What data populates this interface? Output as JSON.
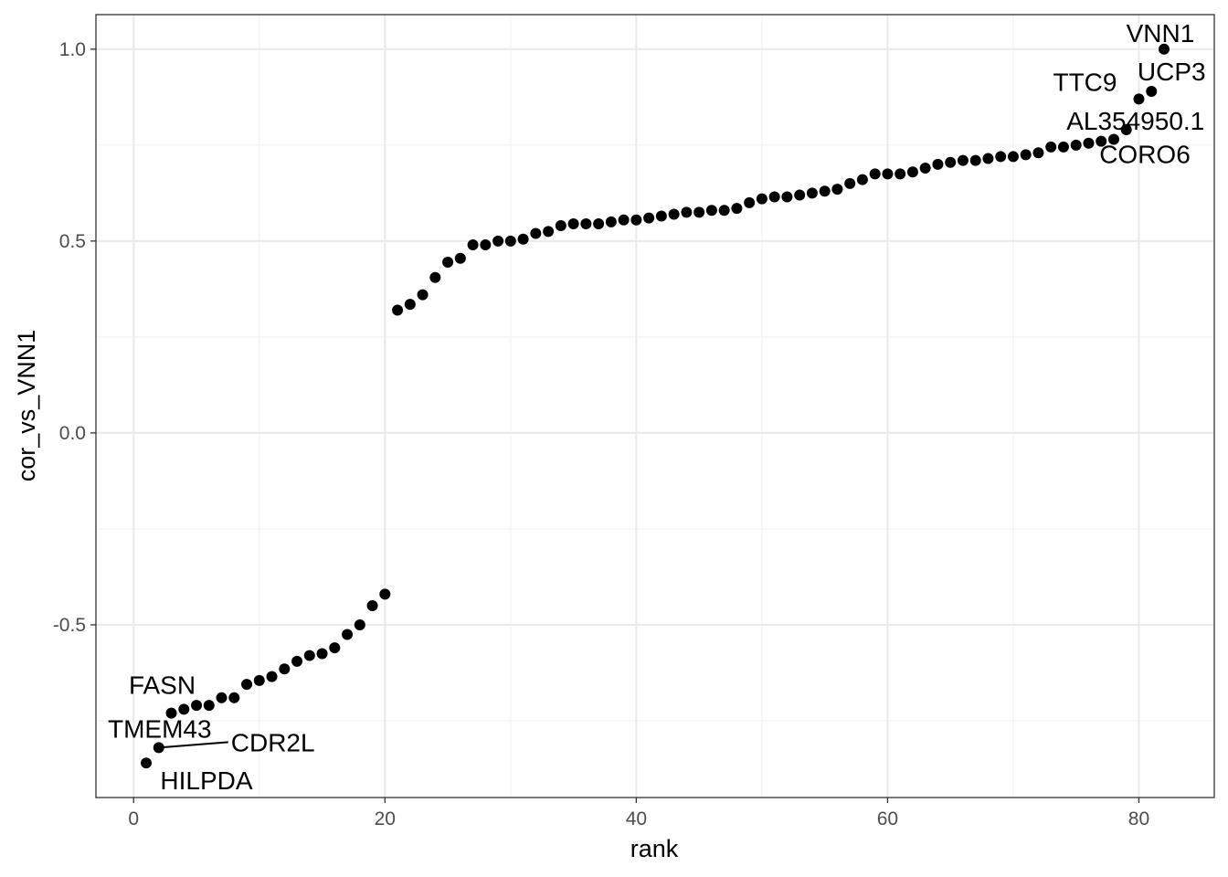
{
  "chart_data": {
    "type": "scatter",
    "xlabel": "rank",
    "ylabel": "cor_vs_VNN1",
    "xlim": [
      -3,
      86
    ],
    "ylim": [
      -0.95,
      1.09
    ],
    "xticks": [
      0,
      20,
      40,
      60,
      80
    ],
    "xtick_labels": [
      "0",
      "20",
      "40",
      "60",
      "80"
    ],
    "yticks": [
      -0.5,
      0.0,
      0.5,
      1.0
    ],
    "ytick_labels": [
      "-0.5",
      "0.0",
      "0.5",
      "1.0"
    ],
    "grid": true,
    "point_color": "#000000",
    "points": [
      {
        "x": 1,
        "y": -0.86
      },
      {
        "x": 2,
        "y": -0.82
      },
      {
        "x": 3,
        "y": -0.73
      },
      {
        "x": 4,
        "y": -0.72
      },
      {
        "x": 5,
        "y": -0.71
      },
      {
        "x": 6,
        "y": -0.71
      },
      {
        "x": 7,
        "y": -0.69
      },
      {
        "x": 8,
        "y": -0.69
      },
      {
        "x": 9,
        "y": -0.655
      },
      {
        "x": 10,
        "y": -0.645
      },
      {
        "x": 11,
        "y": -0.635
      },
      {
        "x": 12,
        "y": -0.615
      },
      {
        "x": 13,
        "y": -0.595
      },
      {
        "x": 14,
        "y": -0.58
      },
      {
        "x": 15,
        "y": -0.575
      },
      {
        "x": 16,
        "y": -0.56
      },
      {
        "x": 17,
        "y": -0.525
      },
      {
        "x": 18,
        "y": -0.5
      },
      {
        "x": 19,
        "y": -0.45
      },
      {
        "x": 20,
        "y": -0.42
      },
      {
        "x": 21,
        "y": 0.32
      },
      {
        "x": 22,
        "y": 0.335
      },
      {
        "x": 23,
        "y": 0.36
      },
      {
        "x": 24,
        "y": 0.405
      },
      {
        "x": 25,
        "y": 0.445
      },
      {
        "x": 26,
        "y": 0.455
      },
      {
        "x": 27,
        "y": 0.49
      },
      {
        "x": 28,
        "y": 0.49
      },
      {
        "x": 29,
        "y": 0.5
      },
      {
        "x": 30,
        "y": 0.5
      },
      {
        "x": 31,
        "y": 0.505
      },
      {
        "x": 32,
        "y": 0.52
      },
      {
        "x": 33,
        "y": 0.525
      },
      {
        "x": 34,
        "y": 0.54
      },
      {
        "x": 35,
        "y": 0.545
      },
      {
        "x": 36,
        "y": 0.545
      },
      {
        "x": 37,
        "y": 0.545
      },
      {
        "x": 38,
        "y": 0.55
      },
      {
        "x": 39,
        "y": 0.555
      },
      {
        "x": 40,
        "y": 0.555
      },
      {
        "x": 41,
        "y": 0.56
      },
      {
        "x": 42,
        "y": 0.565
      },
      {
        "x": 43,
        "y": 0.57
      },
      {
        "x": 44,
        "y": 0.575
      },
      {
        "x": 45,
        "y": 0.575
      },
      {
        "x": 46,
        "y": 0.58
      },
      {
        "x": 47,
        "y": 0.58
      },
      {
        "x": 48,
        "y": 0.585
      },
      {
        "x": 49,
        "y": 0.6
      },
      {
        "x": 50,
        "y": 0.61
      },
      {
        "x": 51,
        "y": 0.615
      },
      {
        "x": 52,
        "y": 0.615
      },
      {
        "x": 53,
        "y": 0.62
      },
      {
        "x": 54,
        "y": 0.625
      },
      {
        "x": 55,
        "y": 0.63
      },
      {
        "x": 56,
        "y": 0.635
      },
      {
        "x": 57,
        "y": 0.65
      },
      {
        "x": 58,
        "y": 0.66
      },
      {
        "x": 59,
        "y": 0.675
      },
      {
        "x": 60,
        "y": 0.675
      },
      {
        "x": 61,
        "y": 0.675
      },
      {
        "x": 62,
        "y": 0.68
      },
      {
        "x": 63,
        "y": 0.69
      },
      {
        "x": 64,
        "y": 0.7
      },
      {
        "x": 65,
        "y": 0.705
      },
      {
        "x": 66,
        "y": 0.71
      },
      {
        "x": 67,
        "y": 0.71
      },
      {
        "x": 68,
        "y": 0.715
      },
      {
        "x": 69,
        "y": 0.72
      },
      {
        "x": 70,
        "y": 0.72
      },
      {
        "x": 71,
        "y": 0.725
      },
      {
        "x": 72,
        "y": 0.73
      },
      {
        "x": 73,
        "y": 0.745
      },
      {
        "x": 74,
        "y": 0.745
      },
      {
        "x": 75,
        "y": 0.75
      },
      {
        "x": 76,
        "y": 0.755
      },
      {
        "x": 77,
        "y": 0.76
      },
      {
        "x": 78,
        "y": 0.765
      },
      {
        "x": 79,
        "y": 0.79
      },
      {
        "x": 80,
        "y": 0.87
      },
      {
        "x": 81,
        "y": 0.89
      },
      {
        "x": 82,
        "y": 1.0
      }
    ],
    "annotations": [
      {
        "text": "VNN1",
        "x": 82,
        "y": 1.0
      },
      {
        "text": "UCP3",
        "x": 81,
        "y": 0.89
      },
      {
        "text": "TTC9",
        "x": 80,
        "y": 0.87
      },
      {
        "text": "AL354950.1",
        "x": 79,
        "y": 0.79
      },
      {
        "text": "CORO6",
        "x": 78,
        "y": 0.765
      },
      {
        "text": "FASN",
        "x": 3,
        "y": -0.73
      },
      {
        "text": "TMEM43",
        "x": 2,
        "y": -0.82
      },
      {
        "text": "CDR2L",
        "x": 2,
        "y": -0.82
      },
      {
        "text": "HILPDA",
        "x": 1,
        "y": -0.86
      }
    ]
  }
}
